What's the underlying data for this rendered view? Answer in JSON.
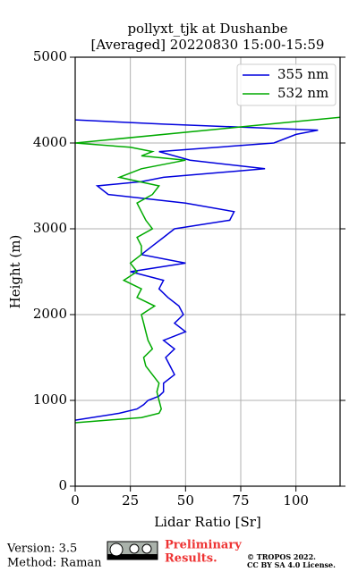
{
  "chart_data": {
    "type": "profile",
    "title": "pollyxt_tjk at Dushanbe",
    "subtitle": "[Averaged] 20220830 15:00-15:59",
    "xlabel": "Lidar Ratio [Sr]",
    "ylabel": "Height (m)",
    "xlim": [
      0,
      120
    ],
    "ylim": [
      0,
      5000
    ],
    "xticks": [
      0,
      25,
      50,
      75,
      100
    ],
    "yticks": [
      0,
      1000,
      2000,
      3000,
      4000,
      5000
    ],
    "grid": true,
    "legend": "upper right",
    "series": [
      {
        "name": "355 nm",
        "color": "#0000dd",
        "x": [
          0,
          20,
          28,
          31,
          33,
          38,
          40,
          40,
          45,
          43,
          41,
          45,
          40,
          50,
          45,
          49,
          47,
          42,
          38,
          40,
          25,
          50,
          30,
          35,
          40,
          45,
          70,
          72,
          50,
          15,
          10,
          30,
          40,
          86,
          52,
          38,
          90,
          100,
          110,
          40,
          0
        ],
        "values": [
          770,
          850,
          900,
          950,
          1000,
          1050,
          1100,
          1200,
          1300,
          1400,
          1500,
          1600,
          1700,
          1800,
          1900,
          2000,
          2100,
          2200,
          2300,
          2400,
          2500,
          2600,
          2700,
          2800,
          2900,
          3000,
          3100,
          3200,
          3300,
          3400,
          3500,
          3550,
          3600,
          3700,
          3800,
          3900,
          4000,
          4100,
          4150,
          4220,
          4270
        ]
      },
      {
        "name": "532 nm",
        "color": "#00aa00",
        "x": [
          0,
          30,
          38,
          39,
          38,
          37,
          38,
          35,
          32,
          31,
          35,
          33,
          32,
          31,
          30,
          36,
          28,
          30,
          22,
          28,
          25,
          30,
          30,
          28,
          35,
          32,
          30,
          28,
          35,
          38,
          20,
          30,
          50,
          30,
          35,
          25,
          0,
          80,
          120
        ],
        "values": [
          740,
          800,
          850,
          900,
          1000,
          1100,
          1200,
          1300,
          1400,
          1500,
          1600,
          1700,
          1800,
          1900,
          2000,
          2100,
          2200,
          2300,
          2400,
          2500,
          2600,
          2700,
          2800,
          2900,
          3000,
          3100,
          3200,
          3300,
          3400,
          3500,
          3600,
          3700,
          3800,
          3850,
          3900,
          3950,
          4000,
          4200,
          4300
        ]
      }
    ]
  },
  "footer": {
    "version": "Version: 3.5",
    "method": "Method: Raman",
    "notice": "Preliminary",
    "notice2": "Results.",
    "copyright": "© TROPOS 2022.",
    "license": "CC BY SA 4.0 License."
  }
}
